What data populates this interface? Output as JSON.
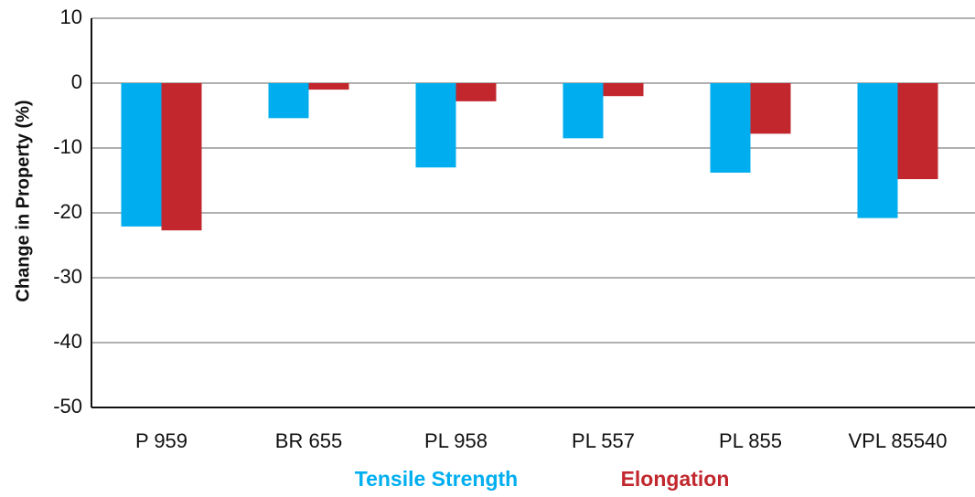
{
  "chart_data": {
    "type": "bar",
    "y_label": "Change in Property (%)",
    "categories": [
      "P 959",
      "BR 655",
      "PL 958",
      "PL 557",
      "PL 855",
      "VPL 85540"
    ],
    "series": [
      {
        "name": "Tensile Strength",
        "color": "#00aeef",
        "values": [
          -22.1,
          -5.4,
          -13,
          -8.5,
          -13.8,
          -20.8
        ]
      },
      {
        "name": "Elongation",
        "color": "#c1272d",
        "values": [
          -22.7,
          -1,
          -2.8,
          -2,
          -7.8,
          -14.8
        ]
      }
    ],
    "ylim": [
      -50,
      10
    ],
    "yticks": [
      10,
      0,
      -10,
      -20,
      -30,
      -40,
      -50
    ],
    "grid": true,
    "legend": "bottom"
  }
}
